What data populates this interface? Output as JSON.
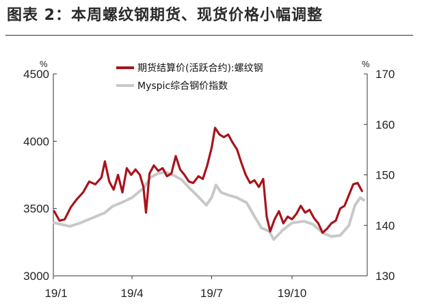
{
  "figure": {
    "title": "图表 2：本周螺纹钢期货、现货价格小幅调整"
  },
  "colors": {
    "futures": "#a8131c",
    "spot": "#c8c8c8",
    "axis": "#333333"
  },
  "chart_data": {
    "type": "line",
    "title": "图表 2：本周螺纹钢期货、现货价格小幅调整",
    "x_range": [
      "2019-01",
      "2019-12"
    ],
    "x_tick_labels": [
      "19/1",
      "19/4",
      "19/7",
      "19/10"
    ],
    "y_left": {
      "unit": "%",
      "range": [
        3000,
        4500
      ],
      "ticks": [
        3000,
        3500,
        4000,
        4500
      ]
    },
    "y_right": {
      "unit": "%",
      "range": [
        130,
        170
      ],
      "ticks": [
        130,
        140,
        150,
        160,
        170
      ]
    },
    "legend_position": "top-center",
    "grid": false,
    "series": [
      {
        "name": "期货结算价(活跃合约):螺纹钢",
        "axis": "left",
        "color": "#a8131c",
        "points": [
          [
            "2019-01-02",
            3480
          ],
          [
            "2019-01-08",
            3410
          ],
          [
            "2019-01-14",
            3420
          ],
          [
            "2019-01-21",
            3510
          ],
          [
            "2019-01-28",
            3570
          ],
          [
            "2019-02-04",
            3620
          ],
          [
            "2019-02-11",
            3700
          ],
          [
            "2019-02-18",
            3680
          ],
          [
            "2019-02-25",
            3730
          ],
          [
            "2019-03-01",
            3850
          ],
          [
            "2019-03-06",
            3700
          ],
          [
            "2019-03-11",
            3640
          ],
          [
            "2019-03-16",
            3750
          ],
          [
            "2019-03-21",
            3620
          ],
          [
            "2019-03-26",
            3800
          ],
          [
            "2019-03-31",
            3750
          ],
          [
            "2019-04-05",
            3790
          ],
          [
            "2019-04-10",
            3750
          ],
          [
            "2019-04-14",
            3660
          ],
          [
            "2019-04-17",
            3470
          ],
          [
            "2019-04-21",
            3760
          ],
          [
            "2019-04-26",
            3820
          ],
          [
            "2019-05-01",
            3780
          ],
          [
            "2019-05-06",
            3800
          ],
          [
            "2019-05-11",
            3740
          ],
          [
            "2019-05-16",
            3760
          ],
          [
            "2019-05-21",
            3890
          ],
          [
            "2019-05-26",
            3790
          ],
          [
            "2019-05-31",
            3750
          ],
          [
            "2019-06-05",
            3700
          ],
          [
            "2019-06-10",
            3690
          ],
          [
            "2019-06-16",
            3740
          ],
          [
            "2019-06-21",
            3720
          ],
          [
            "2019-06-26",
            3820
          ],
          [
            "2019-07-01",
            3950
          ],
          [
            "2019-07-05",
            4100
          ],
          [
            "2019-07-10",
            4050
          ],
          [
            "2019-07-15",
            4030
          ],
          [
            "2019-07-20",
            4050
          ],
          [
            "2019-07-25",
            3990
          ],
          [
            "2019-07-30",
            3940
          ],
          [
            "2019-08-04",
            3840
          ],
          [
            "2019-08-09",
            3750
          ],
          [
            "2019-08-14",
            3690
          ],
          [
            "2019-08-19",
            3710
          ],
          [
            "2019-08-24",
            3660
          ],
          [
            "2019-08-29",
            3720
          ],
          [
            "2019-09-02",
            3440
          ],
          [
            "2019-09-06",
            3330
          ],
          [
            "2019-09-11",
            3420
          ],
          [
            "2019-09-16",
            3480
          ],
          [
            "2019-09-21",
            3390
          ],
          [
            "2019-09-26",
            3440
          ],
          [
            "2019-10-01",
            3420
          ],
          [
            "2019-10-06",
            3460
          ],
          [
            "2019-10-11",
            3520
          ],
          [
            "2019-10-16",
            3470
          ],
          [
            "2019-10-21",
            3490
          ],
          [
            "2019-10-26",
            3430
          ],
          [
            "2019-10-31",
            3390
          ],
          [
            "2019-11-05",
            3320
          ],
          [
            "2019-11-10",
            3350
          ],
          [
            "2019-11-15",
            3390
          ],
          [
            "2019-11-20",
            3410
          ],
          [
            "2019-11-25",
            3500
          ],
          [
            "2019-11-30",
            3520
          ],
          [
            "2019-12-05",
            3600
          ],
          [
            "2019-12-10",
            3680
          ],
          [
            "2019-12-15",
            3690
          ],
          [
            "2019-12-20",
            3630
          ]
        ]
      },
      {
        "name": "Myspic综合钢价指数",
        "axis": "right",
        "color": "#c8c8c8",
        "points": [
          [
            "2019-01-02",
            140.5
          ],
          [
            "2019-01-10",
            140.2
          ],
          [
            "2019-01-20",
            139.8
          ],
          [
            "2019-02-01",
            140.5
          ],
          [
            "2019-02-15",
            141.5
          ],
          [
            "2019-03-01",
            142.5
          ],
          [
            "2019-03-10",
            143.8
          ],
          [
            "2019-03-20",
            144.5
          ],
          [
            "2019-04-01",
            145.5
          ],
          [
            "2019-04-08",
            146.5
          ],
          [
            "2019-04-15",
            147.5
          ],
          [
            "2019-04-22",
            149.5
          ],
          [
            "2019-05-01",
            150.3
          ],
          [
            "2019-05-10",
            150.5
          ],
          [
            "2019-05-20",
            149.8
          ],
          [
            "2019-05-28",
            149.0
          ],
          [
            "2019-06-05",
            147.5
          ],
          [
            "2019-06-15",
            145.8
          ],
          [
            "2019-06-25",
            144.0
          ],
          [
            "2019-07-01",
            145.5
          ],
          [
            "2019-07-06",
            148.0
          ],
          [
            "2019-07-12",
            146.5
          ],
          [
            "2019-07-20",
            146.0
          ],
          [
            "2019-07-30",
            145.5
          ],
          [
            "2019-08-10",
            144.5
          ],
          [
            "2019-08-20",
            141.5
          ],
          [
            "2019-08-27",
            139.5
          ],
          [
            "2019-09-05",
            138.8
          ],
          [
            "2019-09-10",
            137.2
          ],
          [
            "2019-09-20",
            139.0
          ],
          [
            "2019-10-01",
            140.5
          ],
          [
            "2019-10-15",
            140.8
          ],
          [
            "2019-10-25",
            140.2
          ],
          [
            "2019-11-05",
            138.5
          ],
          [
            "2019-11-15",
            137.8
          ],
          [
            "2019-11-25",
            138.0
          ],
          [
            "2019-12-05",
            140.0
          ],
          [
            "2019-12-12",
            144.0
          ],
          [
            "2019-12-18",
            145.5
          ],
          [
            "2019-12-22",
            145.0
          ]
        ]
      }
    ]
  }
}
